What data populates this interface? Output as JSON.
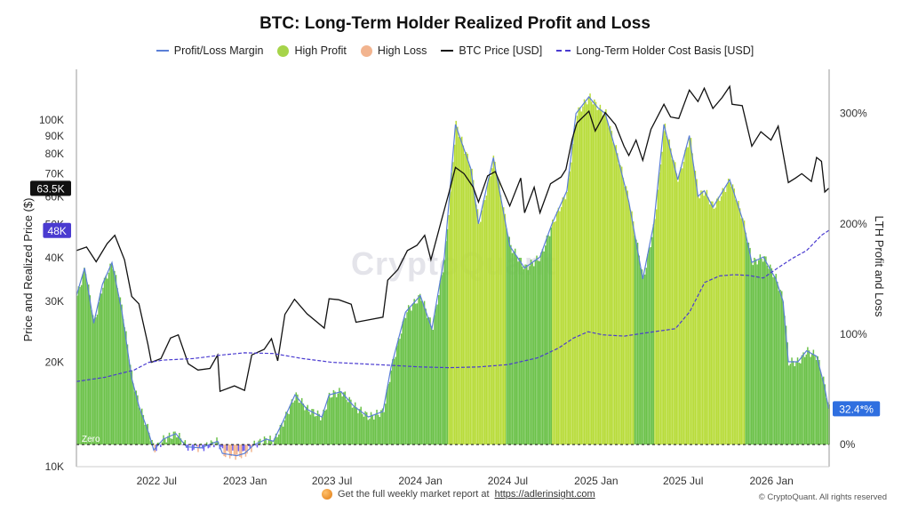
{
  "title": "BTC: Long-Term Holder Realized Profit and Loss",
  "legend": [
    {
      "label": "Profit/Loss Margin",
      "color": "#5b7fd6",
      "kind": "line"
    },
    {
      "label": "High Profit",
      "color": "#a6d44a",
      "kind": "dot"
    },
    {
      "label": "High Loss",
      "color": "#f2b48f",
      "kind": "dot"
    },
    {
      "label": "BTC Price [USD]",
      "color": "#111111",
      "kind": "line"
    },
    {
      "label": "Long-Term Holder Cost Basis [USD]",
      "color": "#4a3bd0",
      "kind": "dash"
    }
  ],
  "watermark": "CryptoQuant",
  "footer": {
    "text": "Get the full weekly market report at",
    "link": "https://adlerinsight.com"
  },
  "copyright": "© CryptoQuant. All rights reserved",
  "colors": {
    "profit": "#6cc24a",
    "high_profit": "#b8dc3a",
    "loss_blue": "#6a5cf0",
    "high_loss": "#f2b48f",
    "price": "#111111",
    "cost_basis": "#4a3bd0",
    "margin": "#5b7fd6"
  },
  "chart_data": {
    "type": "line",
    "title": "BTC: Long-Term Holder Realized Profit and Loss",
    "ylabel_left": "Price and Realized Price ($)",
    "ylabel_right": "LTH Profit and Loss",
    "y_left_scale": "log",
    "y_left_range": [
      10000,
      140000
    ],
    "y_left_ticks": [
      "10K",
      "20K",
      "30K",
      "40K",
      "50K",
      "60K",
      "70K",
      "80K",
      "90K",
      "100K"
    ],
    "y_right_range": [
      -20,
      340
    ],
    "y_right_ticks": [
      "0%",
      "100%",
      "200%",
      "300%"
    ],
    "x_range": [
      "2022-01-15",
      "2026-05-01"
    ],
    "x_ticks": [
      "2022 Jul",
      "2023 Jan",
      "2023 Jul",
      "2024 Jan",
      "2024 Jul",
      "2025 Jan",
      "2025 Jul",
      "2026 Jan"
    ],
    "zero_label": "Zero",
    "current_price_label": "63.5K",
    "current_cost_basis_label": "48K",
    "current_margin_label": "32.4*%",
    "series": [
      {
        "name": "BTC Price [USD]",
        "points": [
          [
            "2022-01-15",
            42000
          ],
          [
            "2022-02-05",
            43000
          ],
          [
            "2022-02-25",
            39000
          ],
          [
            "2022-03-20",
            44000
          ],
          [
            "2022-04-05",
            46500
          ],
          [
            "2022-04-25",
            39500
          ],
          [
            "2022-05-10",
            31000
          ],
          [
            "2022-05-25",
            29500
          ],
          [
            "2022-06-13",
            22500
          ],
          [
            "2022-06-20",
            20000
          ],
          [
            "2022-07-10",
            20500
          ],
          [
            "2022-07-30",
            23500
          ],
          [
            "2022-08-15",
            24000
          ],
          [
            "2022-09-05",
            19800
          ],
          [
            "2022-09-25",
            19000
          ],
          [
            "2022-10-20",
            19200
          ],
          [
            "2022-11-05",
            21000
          ],
          [
            "2022-11-10",
            16500
          ],
          [
            "2022-12-10",
            17100
          ],
          [
            "2022-12-31",
            16600
          ],
          [
            "2023-01-15",
            21000
          ],
          [
            "2023-02-10",
            21800
          ],
          [
            "2023-02-25",
            23400
          ],
          [
            "2023-03-10",
            20200
          ],
          [
            "2023-03-25",
            27500
          ],
          [
            "2023-04-14",
            30400
          ],
          [
            "2023-05-10",
            27600
          ],
          [
            "2023-06-15",
            25100
          ],
          [
            "2023-06-25",
            30500
          ],
          [
            "2023-07-15",
            30300
          ],
          [
            "2023-08-10",
            29400
          ],
          [
            "2023-08-20",
            26100
          ],
          [
            "2023-09-15",
            26500
          ],
          [
            "2023-10-15",
            27000
          ],
          [
            "2023-10-25",
            34500
          ],
          [
            "2023-11-15",
            37000
          ],
          [
            "2023-12-05",
            42000
          ],
          [
            "2023-12-25",
            43500
          ],
          [
            "2024-01-10",
            46500
          ],
          [
            "2024-01-23",
            39500
          ],
          [
            "2024-02-15",
            52000
          ],
          [
            "2024-03-01",
            62000
          ],
          [
            "2024-03-14",
            73000
          ],
          [
            "2024-04-01",
            70000
          ],
          [
            "2024-04-20",
            64000
          ],
          [
            "2024-05-01",
            58000
          ],
          [
            "2024-05-20",
            69000
          ],
          [
            "2024-06-05",
            71000
          ],
          [
            "2024-07-05",
            56500
          ],
          [
            "2024-07-28",
            68000
          ],
          [
            "2024-08-05",
            54000
          ],
          [
            "2024-08-25",
            64000
          ],
          [
            "2024-09-06",
            54000
          ],
          [
            "2024-09-28",
            65500
          ],
          [
            "2024-10-20",
            68500
          ],
          [
            "2024-10-30",
            72000
          ],
          [
            "2024-11-12",
            88000
          ],
          [
            "2024-11-22",
            98000
          ],
          [
            "2024-12-17",
            106000
          ],
          [
            "2024-12-30",
            93000
          ],
          [
            "2025-01-20",
            105000
          ],
          [
            "2025-02-10",
            97000
          ],
          [
            "2025-02-28",
            84000
          ],
          [
            "2025-03-10",
            79000
          ],
          [
            "2025-03-25",
            87500
          ],
          [
            "2025-04-08",
            76500
          ],
          [
            "2025-04-25",
            94000
          ],
          [
            "2025-05-22",
            111000
          ],
          [
            "2025-06-05",
            102000
          ],
          [
            "2025-06-22",
            101000
          ],
          [
            "2025-07-14",
            122000
          ],
          [
            "2025-08-01",
            113000
          ],
          [
            "2025-08-14",
            123500
          ],
          [
            "2025-09-01",
            108000
          ],
          [
            "2025-09-20",
            116000
          ],
          [
            "2025-10-06",
            125000
          ],
          [
            "2025-10-11",
            111000
          ],
          [
            "2025-11-01",
            110000
          ],
          [
            "2025-11-21",
            84000
          ],
          [
            "2025-12-10",
            92500
          ],
          [
            "2025-12-31",
            87500
          ],
          [
            "2026-01-15",
            96000
          ],
          [
            "2026-02-05",
            66000
          ],
          [
            "2026-02-20",
            68000
          ],
          [
            "2026-03-05",
            70000
          ],
          [
            "2026-03-25",
            66500
          ],
          [
            "2026-04-05",
            78000
          ],
          [
            "2026-04-15",
            76000
          ],
          [
            "2026-04-22",
            62000
          ],
          [
            "2026-04-30",
            63500
          ]
        ]
      },
      {
        "name": "Long-Term Holder Cost Basis [USD]",
        "points": [
          [
            "2022-01-15",
            17600
          ],
          [
            "2022-03-15",
            18100
          ],
          [
            "2022-05-15",
            19000
          ],
          [
            "2022-06-15",
            20000
          ],
          [
            "2022-07-15",
            20300
          ],
          [
            "2022-09-15",
            20500
          ],
          [
            "2022-11-15",
            21000
          ],
          [
            "2022-12-31",
            21300
          ],
          [
            "2023-03-01",
            21200
          ],
          [
            "2023-05-01",
            20500
          ],
          [
            "2023-07-01",
            20000
          ],
          [
            "2023-09-01",
            19800
          ],
          [
            "2023-11-01",
            19600
          ],
          [
            "2024-01-01",
            19400
          ],
          [
            "2024-03-01",
            19300
          ],
          [
            "2024-05-01",
            19400
          ],
          [
            "2024-07-01",
            19700
          ],
          [
            "2024-09-01",
            20600
          ],
          [
            "2024-10-15",
            22000
          ],
          [
            "2024-11-15",
            23500
          ],
          [
            "2024-12-15",
            24500
          ],
          [
            "2025-01-15",
            24000
          ],
          [
            "2025-03-01",
            23800
          ],
          [
            "2025-05-01",
            24500
          ],
          [
            "2025-06-15",
            25000
          ],
          [
            "2025-07-15",
            28000
          ],
          [
            "2025-08-15",
            34000
          ],
          [
            "2025-09-15",
            35500
          ],
          [
            "2025-10-15",
            35800
          ],
          [
            "2025-11-15",
            35600
          ],
          [
            "2025-12-15",
            35000
          ],
          [
            "2026-01-15",
            37500
          ],
          [
            "2026-02-15",
            40000
          ],
          [
            "2026-03-15",
            42000
          ],
          [
            "2026-04-15",
            46500
          ],
          [
            "2026-04-30",
            48000
          ]
        ]
      },
      {
        "name": "Profit/Loss Margin",
        "points": [
          [
            "2022-01-15",
            135
          ],
          [
            "2022-02-01",
            160
          ],
          [
            "2022-02-20",
            110
          ],
          [
            "2022-03-10",
            145
          ],
          [
            "2022-03-30",
            165
          ],
          [
            "2022-04-20",
            120
          ],
          [
            "2022-05-10",
            60
          ],
          [
            "2022-05-25",
            35
          ],
          [
            "2022-06-15",
            10
          ],
          [
            "2022-06-25",
            -5
          ],
          [
            "2022-07-15",
            5
          ],
          [
            "2022-08-10",
            10
          ],
          [
            "2022-09-01",
            -2
          ],
          [
            "2022-10-01",
            -3
          ],
          [
            "2022-11-05",
            3
          ],
          [
            "2022-11-15",
            -8
          ],
          [
            "2022-12-15",
            -10
          ],
          [
            "2022-12-31",
            -8
          ],
          [
            "2023-01-20",
            0
          ],
          [
            "2023-02-15",
            5
          ],
          [
            "2023-03-01",
            3
          ],
          [
            "2023-03-20",
            20
          ],
          [
            "2023-04-15",
            45
          ],
          [
            "2023-05-10",
            32
          ],
          [
            "2023-06-10",
            25
          ],
          [
            "2023-06-25",
            45
          ],
          [
            "2023-07-20",
            48
          ],
          [
            "2023-08-15",
            35
          ],
          [
            "2023-09-15",
            25
          ],
          [
            "2023-10-15",
            30
          ],
          [
            "2023-11-01",
            70
          ],
          [
            "2023-12-01",
            120
          ],
          [
            "2024-01-01",
            135
          ],
          [
            "2024-01-25",
            105
          ],
          [
            "2024-02-20",
            170
          ],
          [
            "2024-03-14",
            290
          ],
          [
            "2024-04-15",
            250
          ],
          [
            "2024-05-01",
            200
          ],
          [
            "2024-06-01",
            260
          ],
          [
            "2024-07-05",
            180
          ],
          [
            "2024-08-05",
            160
          ],
          [
            "2024-09-06",
            170
          ],
          [
            "2024-10-01",
            200
          ],
          [
            "2024-11-01",
            230
          ],
          [
            "2024-11-20",
            300
          ],
          [
            "2024-12-17",
            315
          ],
          [
            "2025-01-05",
            305
          ],
          [
            "2025-01-20",
            300
          ],
          [
            "2025-02-15",
            260
          ],
          [
            "2025-03-10",
            220
          ],
          [
            "2025-04-08",
            150
          ],
          [
            "2025-05-01",
            200
          ],
          [
            "2025-05-22",
            290
          ],
          [
            "2025-06-20",
            240
          ],
          [
            "2025-07-14",
            280
          ],
          [
            "2025-08-01",
            225
          ],
          [
            "2025-08-14",
            230
          ],
          [
            "2025-09-01",
            215
          ],
          [
            "2025-10-06",
            240
          ],
          [
            "2025-11-01",
            205
          ],
          [
            "2025-11-21",
            165
          ],
          [
            "2025-12-15",
            170
          ],
          [
            "2026-01-10",
            150
          ],
          [
            "2026-01-25",
            130
          ],
          [
            "2026-02-05",
            75
          ],
          [
            "2026-02-25",
            75
          ],
          [
            "2026-03-15",
            85
          ],
          [
            "2026-04-05",
            80
          ],
          [
            "2026-04-20",
            55
          ],
          [
            "2026-04-30",
            32.4
          ]
        ]
      }
    ]
  }
}
